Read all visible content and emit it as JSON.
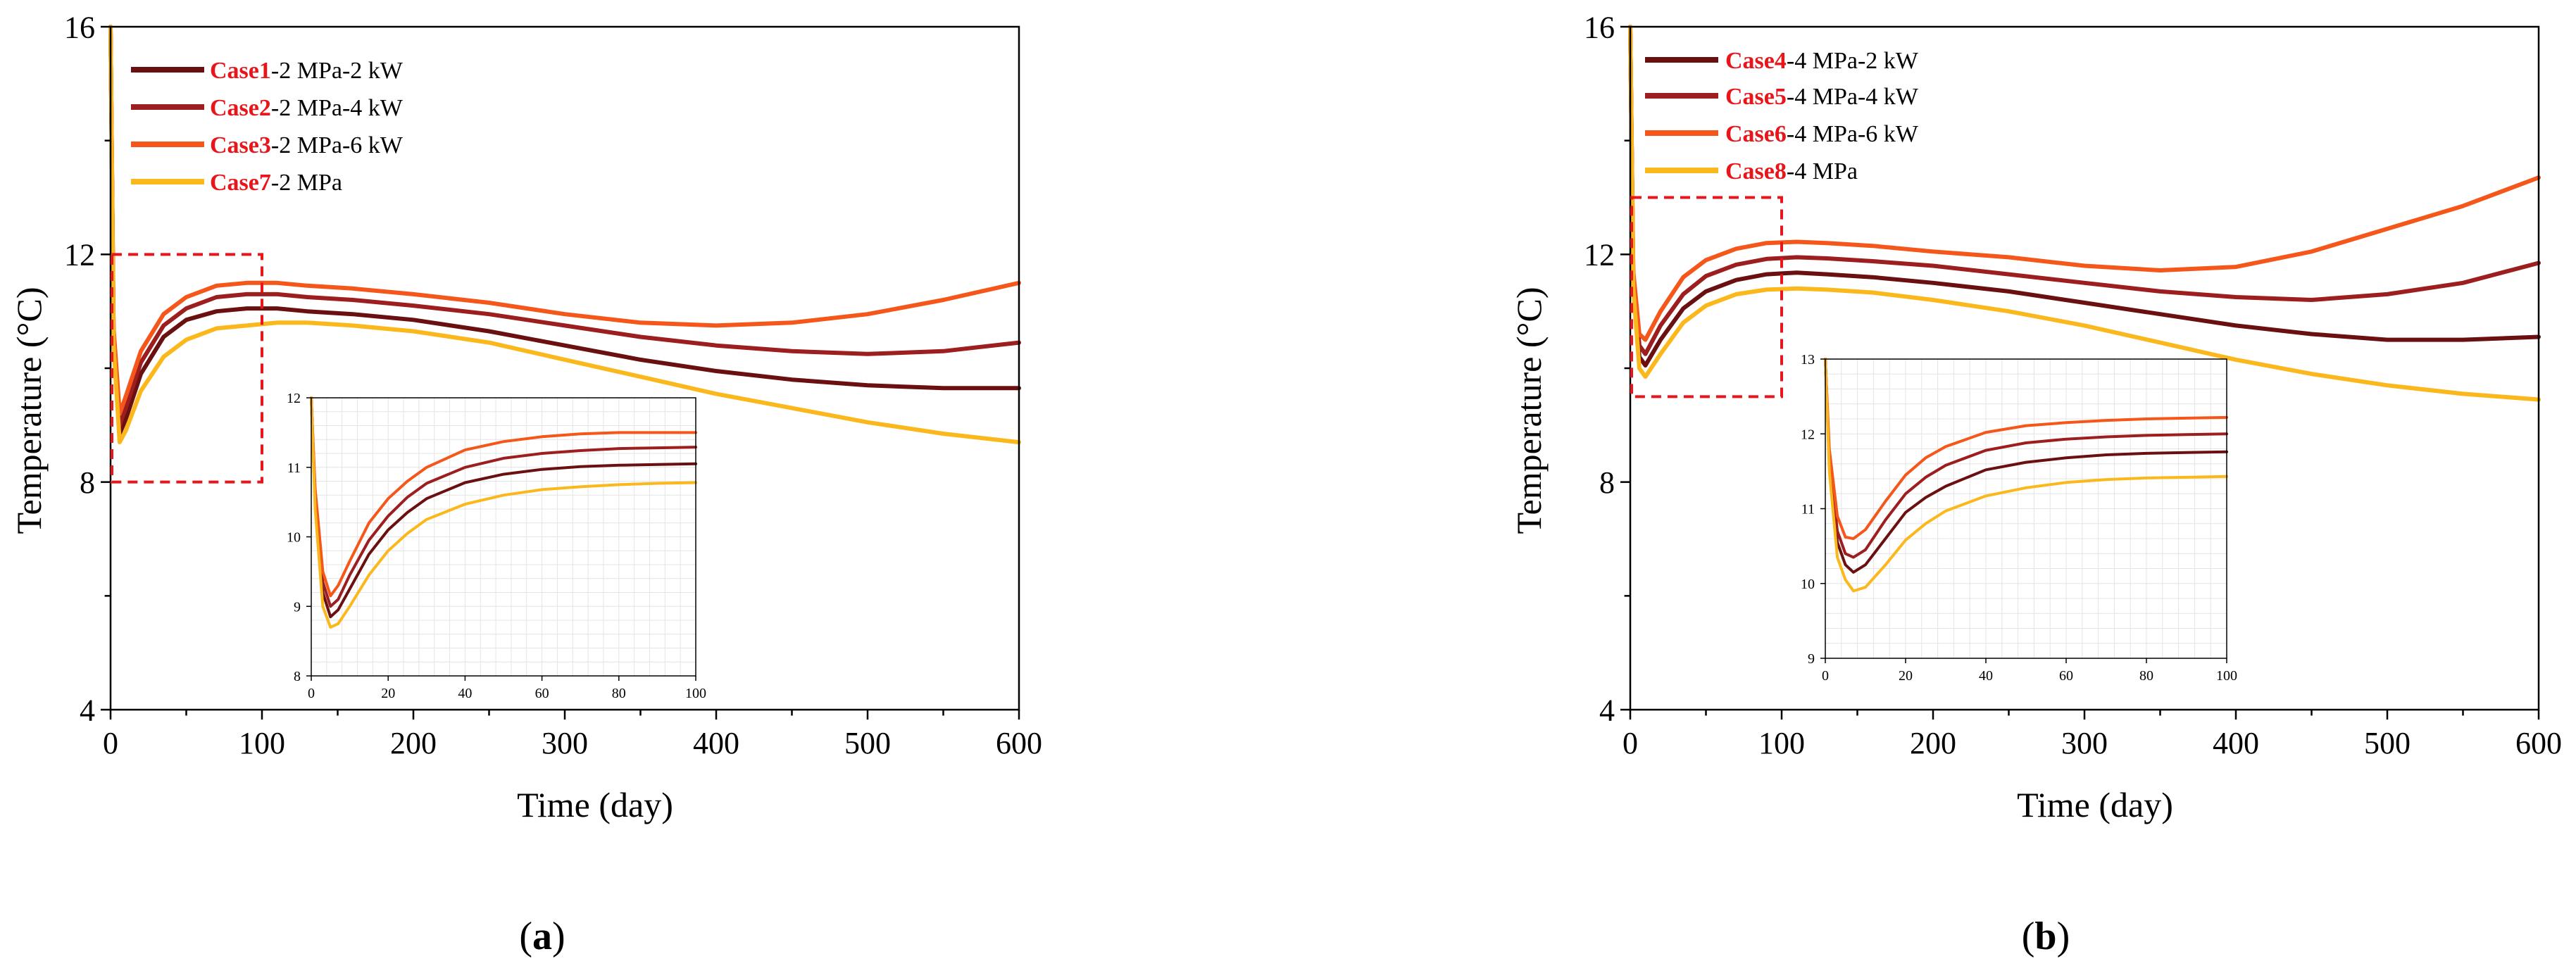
{
  "colors": {
    "case_label": "#e8151b",
    "zoom_box": "#e8151b",
    "series": [
      "#6b1010",
      "#9c1e1e",
      "#f5561a",
      "#fbb81c"
    ]
  },
  "panels": [
    {
      "label_open": "(",
      "label_letter": "a",
      "label_close": ")",
      "legend": [
        {
          "case": "Case1",
          "rest": "-2 MPa-2 kW"
        },
        {
          "case": "Case2",
          "rest": "-2 MPa-4 kW"
        },
        {
          "case": "Case3",
          "rest": "-2 MPa-6 kW"
        },
        {
          "case": "Case7",
          "rest": "-2 MPa"
        }
      ]
    },
    {
      "label_open": "(",
      "label_letter": "b",
      "label_close": ")",
      "legend": [
        {
          "case": "Case4",
          "rest": "-4 MPa-2 kW"
        },
        {
          "case": "Case5",
          "rest": "-4 MPa-4 kW"
        },
        {
          "case": "Case6",
          "rest": "-4 MPa-6 kW"
        },
        {
          "case": "Case8",
          "rest": "-4 MPa"
        }
      ]
    }
  ],
  "chart_data": [
    {
      "type": "line",
      "panel": "a",
      "xlabel": "Time (day)",
      "ylabel": "Temperature (°C)",
      "xlim": [
        0,
        600
      ],
      "ylim": [
        4,
        16
      ],
      "xticks": [
        0,
        100,
        200,
        300,
        400,
        500,
        600
      ],
      "yticks": [
        4,
        8,
        12,
        16
      ],
      "x": [
        0,
        2,
        6,
        10,
        20,
        35,
        50,
        70,
        90,
        110,
        130,
        160,
        200,
        250,
        300,
        350,
        400,
        450,
        500,
        550,
        600
      ],
      "series": [
        {
          "name": "Case1-2 MPa-2 kW",
          "values": [
            16,
            10.5,
            8.85,
            9.1,
            9.9,
            10.55,
            10.85,
            11.0,
            11.05,
            11.05,
            11.0,
            10.95,
            10.85,
            10.65,
            10.4,
            10.15,
            9.95,
            9.8,
            9.7,
            9.65,
            9.65
          ]
        },
        {
          "name": "Case2-2 MPa-4 kW",
          "values": [
            16,
            10.6,
            9.0,
            9.3,
            10.1,
            10.75,
            11.05,
            11.25,
            11.3,
            11.3,
            11.25,
            11.2,
            11.1,
            10.95,
            10.75,
            10.55,
            10.4,
            10.3,
            10.25,
            10.3,
            10.45
          ]
        },
        {
          "name": "Case3-2 MPa-6 kW",
          "values": [
            16,
            10.7,
            9.2,
            9.5,
            10.3,
            10.95,
            11.25,
            11.45,
            11.5,
            11.5,
            11.45,
            11.4,
            11.3,
            11.15,
            10.95,
            10.8,
            10.75,
            10.8,
            10.95,
            11.2,
            11.5
          ]
        },
        {
          "name": "Case7-2 MPa",
          "values": [
            16,
            10.4,
            8.7,
            8.9,
            9.6,
            10.2,
            10.5,
            10.7,
            10.75,
            10.8,
            10.8,
            10.75,
            10.65,
            10.45,
            10.15,
            9.85,
            9.55,
            9.3,
            9.05,
            8.85,
            8.7
          ]
        }
      ],
      "zoom_box": {
        "x_range": [
          0,
          100
        ],
        "y_range": [
          8,
          12
        ]
      },
      "inset": {
        "xlim": [
          0,
          100
        ],
        "ylim": [
          8,
          12
        ],
        "xticks": [
          0,
          20,
          40,
          60,
          80,
          100
        ],
        "yticks": [
          8,
          9,
          10,
          11,
          12
        ],
        "x": [
          0,
          1,
          3,
          5,
          7,
          10,
          15,
          20,
          25,
          30,
          40,
          50,
          60,
          70,
          80,
          90,
          100
        ],
        "series": [
          {
            "name": "Case1-2 MPa-2 kW",
            "values": [
              12,
              10.5,
              9.2,
              8.85,
              8.95,
              9.25,
              9.75,
              10.1,
              10.35,
              10.55,
              10.78,
              10.9,
              10.97,
              11.01,
              11.03,
              11.04,
              11.05
            ]
          },
          {
            "name": "Case2-2 MPa-4 kW",
            "values": [
              12,
              10.6,
              9.35,
              9.0,
              9.1,
              9.45,
              9.95,
              10.3,
              10.57,
              10.77,
              11.0,
              11.13,
              11.2,
              11.24,
              11.27,
              11.28,
              11.29
            ]
          },
          {
            "name": "Case3-2 MPa-6 kW",
            "values": [
              12,
              10.7,
              9.5,
              9.15,
              9.3,
              9.65,
              10.2,
              10.55,
              10.8,
              11.0,
              11.25,
              11.37,
              11.44,
              11.48,
              11.5,
              11.5,
              11.5
            ]
          },
          {
            "name": "Case7-2 MPa",
            "values": [
              12,
              10.4,
              9.0,
              8.7,
              8.75,
              9.0,
              9.45,
              9.8,
              10.05,
              10.25,
              10.47,
              10.6,
              10.68,
              10.72,
              10.75,
              10.77,
              10.78
            ]
          }
        ]
      }
    },
    {
      "type": "line",
      "panel": "b",
      "xlabel": "Time (day)",
      "ylabel": "Temperature (°C)",
      "xlim": [
        0,
        600
      ],
      "ylim": [
        4,
        16
      ],
      "xticks": [
        0,
        100,
        200,
        300,
        400,
        500,
        600
      ],
      "yticks": [
        4,
        8,
        12,
        16
      ],
      "x": [
        0,
        2,
        6,
        10,
        20,
        35,
        50,
        70,
        90,
        110,
        130,
        160,
        200,
        250,
        300,
        350,
        400,
        450,
        500,
        550,
        600
      ],
      "series": [
        {
          "name": "Case4-4 MPa-2 kW",
          "values": [
            16,
            11.5,
            10.2,
            10.05,
            10.5,
            11.05,
            11.35,
            11.55,
            11.65,
            11.68,
            11.65,
            11.6,
            11.5,
            11.35,
            11.15,
            10.95,
            10.75,
            10.6,
            10.5,
            10.5,
            10.55
          ]
        },
        {
          "name": "Case5-4 MPa-4 kW",
          "values": [
            16,
            11.6,
            10.4,
            10.25,
            10.75,
            11.3,
            11.62,
            11.82,
            11.92,
            11.95,
            11.93,
            11.88,
            11.8,
            11.65,
            11.5,
            11.35,
            11.25,
            11.2,
            11.3,
            11.5,
            11.85
          ]
        },
        {
          "name": "Case6-4 MPa-6 kW",
          "values": [
            16,
            11.7,
            10.6,
            10.5,
            11.0,
            11.6,
            11.9,
            12.1,
            12.2,
            12.22,
            12.2,
            12.15,
            12.05,
            11.95,
            11.8,
            11.72,
            11.78,
            12.05,
            12.45,
            12.85,
            13.35
          ]
        },
        {
          "name": "Case8-4 MPa",
          "values": [
            16,
            11.4,
            10.0,
            9.85,
            10.25,
            10.8,
            11.1,
            11.3,
            11.38,
            11.4,
            11.38,
            11.33,
            11.2,
            11.0,
            10.75,
            10.45,
            10.15,
            9.9,
            9.7,
            9.55,
            9.45
          ]
        }
      ],
      "zoom_box": {
        "x_range": [
          0,
          100
        ],
        "y_range": [
          9.5,
          13
        ]
      },
      "inset": {
        "xlim": [
          0,
          100
        ],
        "ylim": [
          9,
          13
        ],
        "xticks": [
          0,
          20,
          40,
          60,
          80,
          100
        ],
        "yticks": [
          9,
          10,
          11,
          12,
          13
        ],
        "x": [
          0,
          1,
          3,
          5,
          7,
          10,
          15,
          20,
          25,
          30,
          40,
          50,
          60,
          70,
          80,
          90,
          100
        ],
        "series": [
          {
            "name": "Case4-4 MPa-2 kW",
            "values": [
              13,
              11.6,
              10.55,
              10.25,
              10.15,
              10.25,
              10.6,
              10.95,
              11.15,
              11.3,
              11.52,
              11.62,
              11.68,
              11.72,
              11.74,
              11.75,
              11.76
            ]
          },
          {
            "name": "Case5-4 MPa-4 kW",
            "values": [
              13,
              11.7,
              10.7,
              10.4,
              10.35,
              10.45,
              10.85,
              11.2,
              11.42,
              11.58,
              11.78,
              11.88,
              11.93,
              11.96,
              11.98,
              11.99,
              12.0
            ]
          },
          {
            "name": "Case6-4 MPa-6 kW",
            "values": [
              13,
              11.8,
              10.9,
              10.62,
              10.6,
              10.72,
              11.1,
              11.45,
              11.68,
              11.83,
              12.02,
              12.11,
              12.15,
              12.18,
              12.2,
              12.21,
              12.22
            ]
          },
          {
            "name": "Case8-4 MPa",
            "values": [
              13,
              11.5,
              10.35,
              10.05,
              9.9,
              9.95,
              10.25,
              10.58,
              10.8,
              10.97,
              11.17,
              11.28,
              11.35,
              11.39,
              11.41,
              11.42,
              11.43
            ]
          }
        ]
      }
    }
  ]
}
